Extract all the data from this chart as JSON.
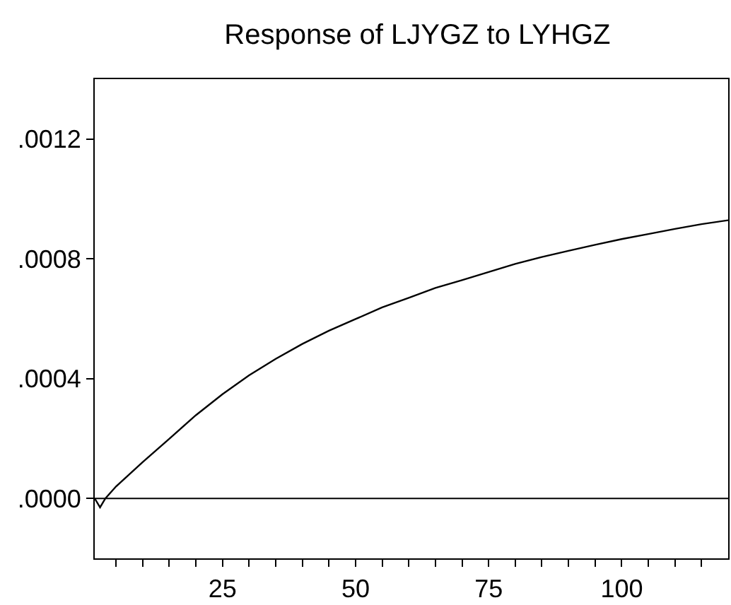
{
  "chart_data": {
    "type": "line",
    "title": "Response of LJYGZ to LYHGZ",
    "x": [
      1,
      2,
      3,
      5,
      10,
      15,
      20,
      25,
      30,
      35,
      40,
      45,
      50,
      55,
      60,
      65,
      70,
      75,
      80,
      85,
      90,
      95,
      100,
      105,
      110,
      115,
      120
    ],
    "series": [
      {
        "color": "#000000",
        "values": [
          0.0,
          -3e-05,
          0.0,
          4e-05,
          0.000121,
          0.000199,
          0.000278,
          0.000348,
          0.000411,
          0.000466,
          0.000516,
          0.00056,
          0.000599,
          0.000638,
          0.00067,
          0.000703,
          0.000729,
          0.000756,
          0.000783,
          0.000806,
          0.000827,
          0.000847,
          0.000866,
          0.000883,
          0.0009,
          0.000916,
          0.000929
        ]
      }
    ],
    "xlim": [
      1,
      120
    ],
    "ylim": [
      -0.0002,
      0.0014
    ],
    "xticks": [
      {
        "value": 5,
        "label": null
      },
      {
        "value": 10,
        "label": null
      },
      {
        "value": 15,
        "label": null
      },
      {
        "value": 20,
        "label": null
      },
      25,
      {
        "value": 30,
        "label": null
      },
      {
        "value": 35,
        "label": null
      },
      {
        "value": 40,
        "label": null
      },
      {
        "value": 45,
        "label": null
      },
      50,
      {
        "value": 55,
        "label": null
      },
      {
        "value": 60,
        "label": null
      },
      {
        "value": 65,
        "label": null
      },
      {
        "value": 70,
        "label": null
      },
      75,
      {
        "value": 80,
        "label": null
      },
      {
        "value": 85,
        "label": null
      },
      {
        "value": 90,
        "label": null
      },
      {
        "value": 95,
        "label": null
      },
      100,
      {
        "value": 105,
        "label": null
      },
      {
        "value": 110,
        "label": null
      },
      {
        "value": 115,
        "label": null
      }
    ],
    "yticks": [
      {
        "value": 0.0,
        "label": ".0000"
      },
      {
        "value": 0.0004,
        "label": ".0004"
      },
      {
        "value": 0.0008,
        "label": ".0008"
      },
      {
        "value": 0.0012,
        "label": ".0012"
      }
    ],
    "ref_lines": [
      {
        "axis": "y",
        "value": 0.0,
        "color": "#000000"
      }
    ],
    "grid": false,
    "marker": "none",
    "line_style": "solid"
  }
}
